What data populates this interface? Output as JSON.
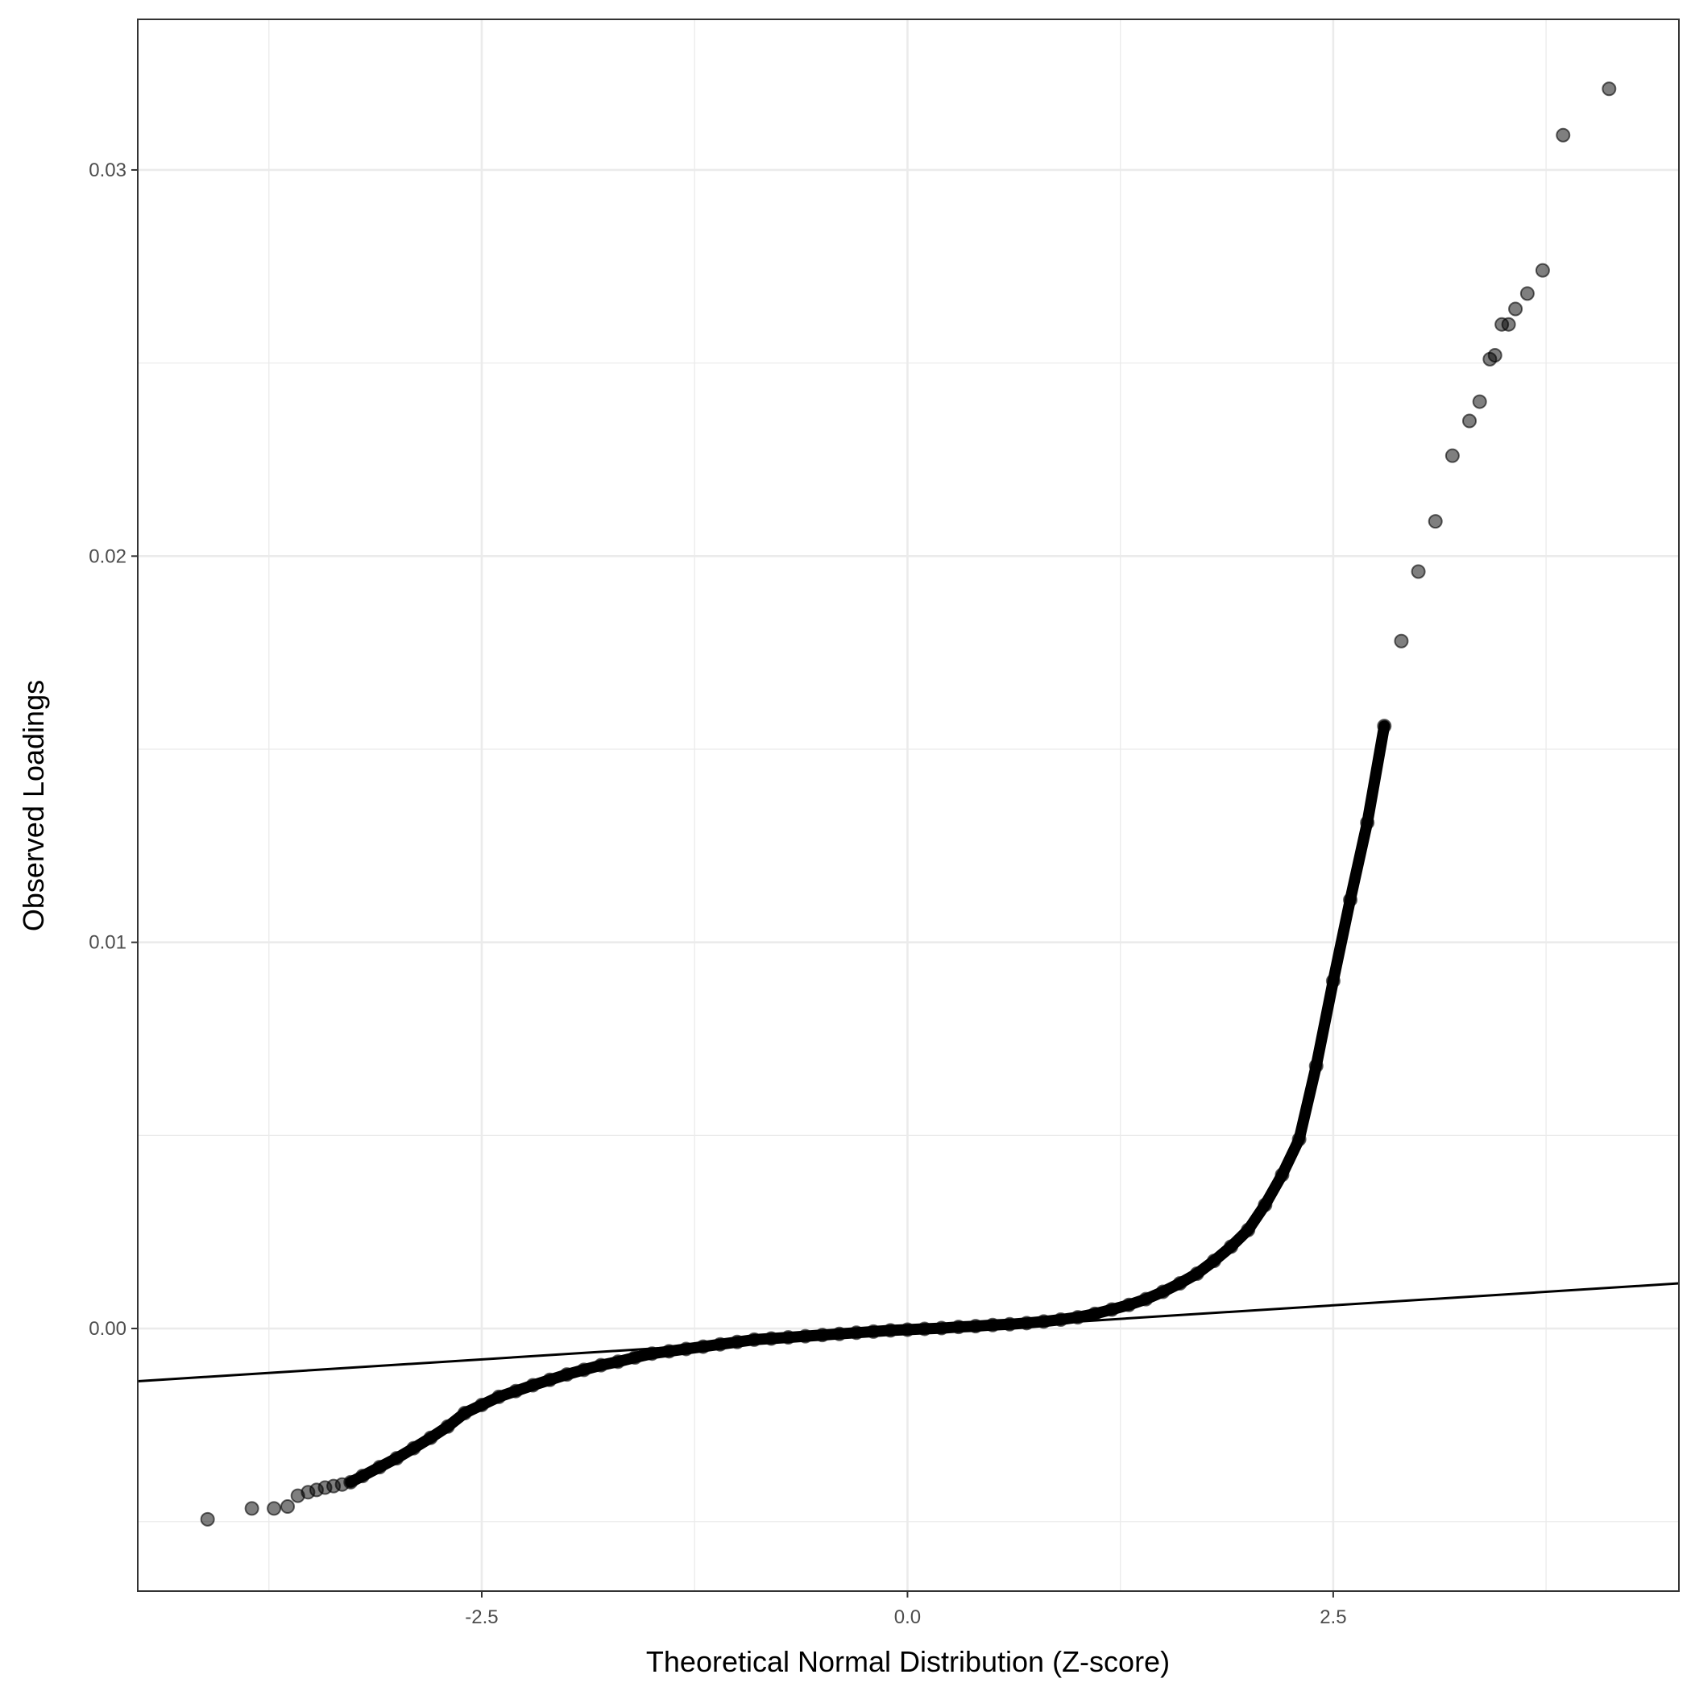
{
  "chart_data": {
    "type": "scatter",
    "title": "",
    "xlabel": "Theoretical Normal Distribution (Z-score)",
    "ylabel": "Observed Loadings",
    "xlim": [
      -4.52,
      4.53
    ],
    "ylim": [
      -0.0068,
      0.0339
    ],
    "x_ticks": [
      {
        "value": -2.5,
        "label": "-2.5"
      },
      {
        "value": 0,
        "label": "0.0"
      },
      {
        "value": 2.5,
        "label": "2.5"
      }
    ],
    "y_ticks": [
      {
        "value": 0,
        "label": "0.00"
      },
      {
        "value": 0.01,
        "label": "0.01"
      },
      {
        "value": 0.02,
        "label": "0.02"
      },
      {
        "value": 0.03,
        "label": "0.03"
      }
    ],
    "grid": true,
    "theme": "black-and-white",
    "point_color": "#000000",
    "point_alpha": 0.5,
    "reference_line": {
      "intercept": -0.0001,
      "slope": 0.00028,
      "color": "#000000"
    },
    "points": [
      [
        -4.11,
        -0.00494
      ],
      [
        -3.85,
        -0.00466
      ],
      [
        -3.72,
        -0.00466
      ],
      [
        -3.64,
        -0.00461
      ],
      [
        -3.58,
        -0.00433
      ],
      [
        -3.52,
        -0.00424
      ],
      [
        -3.47,
        -0.00418
      ],
      [
        -3.42,
        -0.00412
      ],
      [
        -3.37,
        -0.00408
      ],
      [
        -3.32,
        -0.00404
      ],
      [
        -3.27,
        -0.00398
      ],
      [
        -3.2,
        -0.00382
      ],
      [
        -3.1,
        -0.00359
      ],
      [
        -3.0,
        -0.00336
      ],
      [
        -2.9,
        -0.0031
      ],
      [
        -2.8,
        -0.00283
      ],
      [
        -2.7,
        -0.00254
      ],
      [
        -2.6,
        -0.00219
      ],
      [
        -2.5,
        -0.00198
      ],
      [
        -2.4,
        -0.00177
      ],
      [
        -2.3,
        -0.00162
      ],
      [
        -2.2,
        -0.00147
      ],
      [
        -2.1,
        -0.00133
      ],
      [
        -2.0,
        -0.00119
      ],
      [
        -1.9,
        -0.00107
      ],
      [
        -1.8,
        -0.00095
      ],
      [
        -1.7,
        -0.00086
      ],
      [
        -1.6,
        -0.00075
      ],
      [
        -1.5,
        -0.00065
      ],
      [
        -1.4,
        -0.00059
      ],
      [
        -1.3,
        -0.00053
      ],
      [
        -1.2,
        -0.00047
      ],
      [
        -1.1,
        -0.00041
      ],
      [
        -1.0,
        -0.00035
      ],
      [
        -0.9,
        -0.00029
      ],
      [
        -0.8,
        -0.00026
      ],
      [
        -0.7,
        -0.00023
      ],
      [
        -0.6,
        -0.0002
      ],
      [
        -0.5,
        -0.00017
      ],
      [
        -0.4,
        -0.00014
      ],
      [
        -0.3,
        -0.00011
      ],
      [
        -0.2,
        -8e-05
      ],
      [
        -0.1,
        -5e-05
      ],
      [
        0.0,
        -3e-05
      ],
      [
        0.1,
        -1e-05
      ],
      [
        0.2,
        1e-05
      ],
      [
        0.3,
        4e-05
      ],
      [
        0.4,
        6e-05
      ],
      [
        0.5,
        9e-05
      ],
      [
        0.6,
        0.00011
      ],
      [
        0.7,
        0.00014
      ],
      [
        0.8,
        0.00018
      ],
      [
        0.9,
        0.00023
      ],
      [
        1.0,
        0.00029
      ],
      [
        1.1,
        0.00038
      ],
      [
        1.2,
        0.00049
      ],
      [
        1.3,
        0.00061
      ],
      [
        1.4,
        0.00076
      ],
      [
        1.5,
        0.00095
      ],
      [
        1.6,
        0.00117
      ],
      [
        1.7,
        0.00142
      ],
      [
        1.8,
        0.00175
      ],
      [
        1.9,
        0.00212
      ],
      [
        2.0,
        0.00255
      ],
      [
        2.1,
        0.0032
      ],
      [
        2.2,
        0.00398
      ],
      [
        2.3,
        0.0049
      ],
      [
        2.4,
        0.0068
      ],
      [
        2.5,
        0.009
      ],
      [
        2.6,
        0.0111
      ],
      [
        2.7,
        0.0131
      ],
      [
        2.8,
        0.0156
      ],
      [
        2.9,
        0.0178
      ],
      [
        3.0,
        0.0196
      ],
      [
        3.1,
        0.0209
      ],
      [
        3.2,
        0.0226
      ],
      [
        3.3,
        0.0235
      ],
      [
        3.36,
        0.024
      ],
      [
        3.42,
        0.0251
      ],
      [
        3.45,
        0.0252
      ],
      [
        3.49,
        0.026
      ],
      [
        3.53,
        0.026
      ],
      [
        3.57,
        0.0264
      ],
      [
        3.64,
        0.0268
      ],
      [
        3.73,
        0.0274
      ],
      [
        3.85,
        0.0309
      ],
      [
        4.12,
        0.0321
      ]
    ]
  }
}
